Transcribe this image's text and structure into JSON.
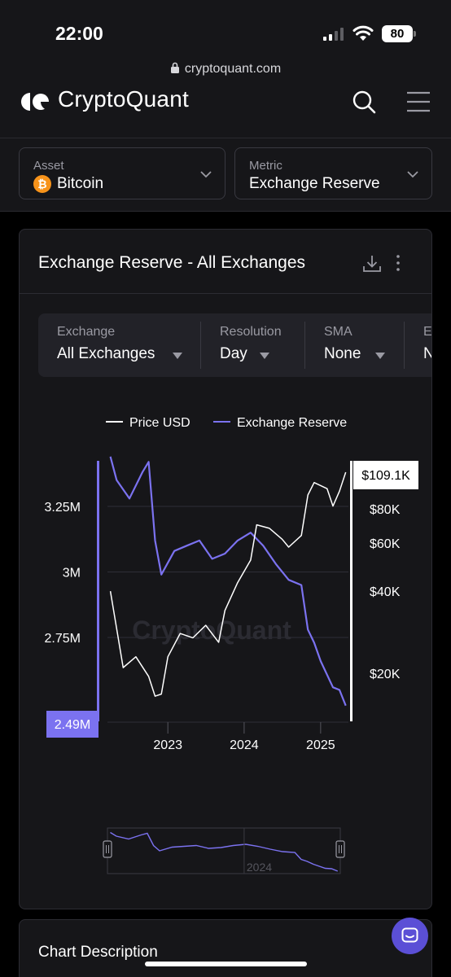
{
  "status_bar": {
    "time": "22:00",
    "battery": "80"
  },
  "browser": {
    "url": "cryptoquant.com"
  },
  "header": {
    "brand": "CryptoQuant",
    "icons": [
      "logo-icon",
      "search-icon",
      "hamburger-menu-icon"
    ]
  },
  "selectors": {
    "asset": {
      "label": "Asset",
      "value": "Bitcoin",
      "icon": "bitcoin-icon"
    },
    "metric": {
      "label": "Metric",
      "value": "Exchange Reserve"
    }
  },
  "card": {
    "title": "Exchange Reserve - All Exchanges",
    "icons": [
      "download-icon",
      "more-vertical-icon"
    ],
    "filters": [
      {
        "label": "Exchange",
        "value": "All Exchanges"
      },
      {
        "label": "Resolution",
        "value": "Day"
      },
      {
        "label": "SMA",
        "value": "None"
      },
      {
        "label": "E",
        "value": "N"
      }
    ]
  },
  "colors": {
    "accent": "#7b72f0",
    "price": "#ffffff",
    "background": "#161619"
  },
  "chart_data": {
    "type": "line",
    "watermark": "CryptoQuant",
    "legend": [
      "Price USD",
      "Exchange Reserve"
    ],
    "legend_placement": "top-center",
    "x_ticks": [
      "2023",
      "2024",
      "2025"
    ],
    "y_left_ticks": [
      "3.25M",
      "3M",
      "2.75M"
    ],
    "y_right_ticks": [
      "$80K",
      "$60K",
      "$40K",
      "$20K"
    ],
    "y_right_scale": "log",
    "current_reserve_label": "2.49M",
    "current_price_label": "$109.1K",
    "series": [
      {
        "name": "Exchange Reserve",
        "color": "#7b72f0",
        "x": [
          "2022-04",
          "2022-05",
          "2022-07",
          "2022-09",
          "2022-10",
          "2022-11",
          "2022-12",
          "2023-02",
          "2023-04",
          "2023-06",
          "2023-08",
          "2023-10",
          "2023-12",
          "2024-02",
          "2024-04",
          "2024-06",
          "2024-08",
          "2024-10",
          "2024-11",
          "2024-12",
          "2025-01",
          "2025-03",
          "2025-04",
          "2025-05"
        ],
        "y": [
          3.44,
          3.35,
          3.28,
          3.38,
          3.42,
          3.12,
          2.99,
          3.08,
          3.1,
          3.12,
          3.05,
          3.07,
          3.12,
          3.15,
          3.1,
          3.03,
          2.97,
          2.95,
          2.78,
          2.73,
          2.66,
          2.56,
          2.55,
          2.49
        ]
      },
      {
        "name": "Price USD",
        "color": "#ffffff",
        "x": [
          "2022-04",
          "2022-06",
          "2022-08",
          "2022-10",
          "2022-11",
          "2022-12",
          "2023-01",
          "2023-03",
          "2023-05",
          "2023-07",
          "2023-09",
          "2023-10",
          "2023-12",
          "2024-02",
          "2024-03",
          "2024-05",
          "2024-07",
          "2024-08",
          "2024-10",
          "2024-11",
          "2024-12",
          "2025-02",
          "2025-03",
          "2025-04",
          "2025-05"
        ],
        "y": [
          40000,
          21000,
          23000,
          19500,
          16500,
          16800,
          23000,
          28000,
          27000,
          30000,
          26000,
          34000,
          43000,
          52000,
          70000,
          68000,
          62000,
          58000,
          64000,
          90000,
          100000,
          95000,
          82000,
          93000,
          109100
        ]
      }
    ]
  },
  "navigator": {
    "tick": "2024"
  },
  "description": {
    "title": "Chart Description"
  },
  "chat": {
    "icon": "chat-bubble-icon"
  }
}
